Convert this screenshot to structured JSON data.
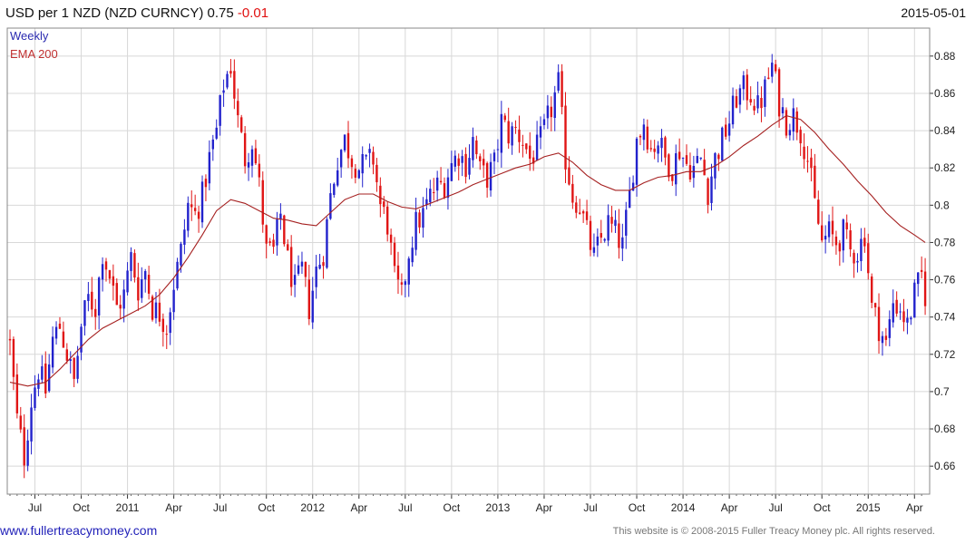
{
  "header": {
    "title": "USD per 1 NZD (NZD CURNCY) 0.75",
    "change": "-0.01",
    "date": "2015-05-01"
  },
  "legend": {
    "weekly": "Weekly",
    "ema": "EMA 200"
  },
  "footer": {
    "site": "www.fullertreacymoney.com",
    "copyright": "This website is © 2008-2015 Fuller Treacy Money plc. All rights reserved."
  },
  "colors": {
    "up": "#2222cc",
    "down": "#e01515",
    "ema": "#a52020",
    "grid": "#d8d8d8"
  },
  "chart_data": {
    "type": "candlestick",
    "title": "USD per 1 NZD (NZD CURNCY) 0.75",
    "period": "Weekly",
    "ylim": [
      0.645,
      0.895
    ],
    "y_ticks": [
      0.66,
      0.68,
      0.7,
      0.72,
      0.74,
      0.76,
      0.78,
      0.8,
      0.82,
      0.84,
      0.86,
      0.88
    ],
    "y_tick_labels": [
      "0.66",
      "0.68",
      "0.7",
      "0.72",
      "0.74",
      "0.76",
      "0.78",
      "0.8",
      "0.82",
      "0.84",
      "0.86",
      "0.88"
    ],
    "x_ticks": [
      {
        "i": 7,
        "label": "Jul"
      },
      {
        "i": 20,
        "label": "Oct"
      },
      {
        "i": 33,
        "label": "2011"
      },
      {
        "i": 46,
        "label": "Apr"
      },
      {
        "i": 59,
        "label": "Jul"
      },
      {
        "i": 72,
        "label": "Oct"
      },
      {
        "i": 85,
        "label": "2012"
      },
      {
        "i": 98,
        "label": "Apr"
      },
      {
        "i": 111,
        "label": "Jul"
      },
      {
        "i": 124,
        "label": "Oct"
      },
      {
        "i": 137,
        "label": "2013"
      },
      {
        "i": 150,
        "label": "Apr"
      },
      {
        "i": 163,
        "label": "Jul"
      },
      {
        "i": 176,
        "label": "Oct"
      },
      {
        "i": 189,
        "label": "2014"
      },
      {
        "i": 202,
        "label": "Apr"
      },
      {
        "i": 215,
        "label": "Jul"
      },
      {
        "i": 228,
        "label": "Oct"
      },
      {
        "i": 241,
        "label": "2015"
      },
      {
        "i": 254,
        "label": "Apr"
      }
    ],
    "num_weeks": 258,
    "weekly_closes": [
      [
        0,
        0.725
      ],
      [
        2,
        0.685
      ],
      [
        4,
        0.665
      ],
      [
        6,
        0.695
      ],
      [
        8,
        0.712
      ],
      [
        10,
        0.7
      ],
      [
        12,
        0.728
      ],
      [
        14,
        0.735
      ],
      [
        16,
        0.72
      ],
      [
        18,
        0.705
      ],
      [
        20,
        0.735
      ],
      [
        22,
        0.75
      ],
      [
        24,
        0.745
      ],
      [
        26,
        0.775
      ],
      [
        28,
        0.762
      ],
      [
        30,
        0.745
      ],
      [
        32,
        0.752
      ],
      [
        34,
        0.772
      ],
      [
        36,
        0.755
      ],
      [
        38,
        0.765
      ],
      [
        40,
        0.745
      ],
      [
        42,
        0.742
      ],
      [
        44,
        0.735
      ],
      [
        46,
        0.758
      ],
      [
        48,
        0.775
      ],
      [
        50,
        0.8
      ],
      [
        52,
        0.795
      ],
      [
        54,
        0.805
      ],
      [
        56,
        0.825
      ],
      [
        58,
        0.84
      ],
      [
        60,
        0.865
      ],
      [
        62,
        0.875
      ],
      [
        64,
        0.845
      ],
      [
        66,
        0.825
      ],
      [
        68,
        0.835
      ],
      [
        70,
        0.81
      ],
      [
        72,
        0.775
      ],
      [
        74,
        0.775
      ],
      [
        76,
        0.795
      ],
      [
        78,
        0.77
      ],
      [
        80,
        0.755
      ],
      [
        82,
        0.765
      ],
      [
        84,
        0.745
      ],
      [
        86,
        0.765
      ],
      [
        88,
        0.775
      ],
      [
        90,
        0.805
      ],
      [
        92,
        0.825
      ],
      [
        94,
        0.835
      ],
      [
        96,
        0.825
      ],
      [
        98,
        0.82
      ],
      [
        100,
        0.822
      ],
      [
        102,
        0.825
      ],
      [
        104,
        0.8
      ],
      [
        106,
        0.79
      ],
      [
        108,
        0.76
      ],
      [
        110,
        0.75
      ],
      [
        112,
        0.775
      ],
      [
        114,
        0.79
      ],
      [
        116,
        0.795
      ],
      [
        118,
        0.805
      ],
      [
        120,
        0.81
      ],
      [
        122,
        0.812
      ],
      [
        124,
        0.822
      ],
      [
        126,
        0.828
      ],
      [
        128,
        0.822
      ],
      [
        130,
        0.835
      ],
      [
        132,
        0.818
      ],
      [
        134,
        0.815
      ],
      [
        136,
        0.822
      ],
      [
        138,
        0.845
      ],
      [
        140,
        0.838
      ],
      [
        142,
        0.84
      ],
      [
        144,
        0.835
      ],
      [
        146,
        0.825
      ],
      [
        148,
        0.83
      ],
      [
        150,
        0.84
      ],
      [
        152,
        0.852
      ],
      [
        154,
        0.865
      ],
      [
        156,
        0.825
      ],
      [
        158,
        0.805
      ],
      [
        160,
        0.8
      ],
      [
        162,
        0.785
      ],
      [
        164,
        0.772
      ],
      [
        166,
        0.782
      ],
      [
        168,
        0.79
      ],
      [
        170,
        0.785
      ],
      [
        172,
        0.778
      ],
      [
        174,
        0.805
      ],
      [
        176,
        0.835
      ],
      [
        178,
        0.845
      ],
      [
        180,
        0.83
      ],
      [
        182,
        0.835
      ],
      [
        184,
        0.825
      ],
      [
        186,
        0.82
      ],
      [
        188,
        0.83
      ],
      [
        190,
        0.822
      ],
      [
        192,
        0.82
      ],
      [
        194,
        0.825
      ],
      [
        196,
        0.808
      ],
      [
        198,
        0.825
      ],
      [
        200,
        0.835
      ],
      [
        202,
        0.845
      ],
      [
        204,
        0.858
      ],
      [
        206,
        0.862
      ],
      [
        208,
        0.86
      ],
      [
        210,
        0.852
      ],
      [
        212,
        0.862
      ],
      [
        214,
        0.875
      ],
      [
        216,
        0.855
      ],
      [
        218,
        0.845
      ],
      [
        220,
        0.848
      ],
      [
        222,
        0.84
      ],
      [
        224,
        0.825
      ],
      [
        226,
        0.8
      ],
      [
        228,
        0.78
      ],
      [
        230,
        0.785
      ],
      [
        232,
        0.78
      ],
      [
        234,
        0.785
      ],
      [
        236,
        0.775
      ],
      [
        238,
        0.775
      ],
      [
        240,
        0.785
      ],
      [
        242,
        0.745
      ],
      [
        244,
        0.735
      ],
      [
        246,
        0.725
      ],
      [
        248,
        0.748
      ],
      [
        250,
        0.745
      ],
      [
        252,
        0.735
      ],
      [
        254,
        0.752
      ],
      [
        256,
        0.762
      ],
      [
        257,
        0.752
      ]
    ],
    "ema_200": [
      [
        0,
        0.705
      ],
      [
        5,
        0.703
      ],
      [
        10,
        0.705
      ],
      [
        14,
        0.712
      ],
      [
        18,
        0.72
      ],
      [
        22,
        0.728
      ],
      [
        26,
        0.734
      ],
      [
        30,
        0.738
      ],
      [
        34,
        0.742
      ],
      [
        38,
        0.746
      ],
      [
        42,
        0.752
      ],
      [
        46,
        0.761
      ],
      [
        50,
        0.772
      ],
      [
        54,
        0.784
      ],
      [
        58,
        0.797
      ],
      [
        62,
        0.803
      ],
      [
        66,
        0.801
      ],
      [
        70,
        0.797
      ],
      [
        74,
        0.793
      ],
      [
        78,
        0.792
      ],
      [
        82,
        0.79
      ],
      [
        86,
        0.789
      ],
      [
        90,
        0.796
      ],
      [
        94,
        0.803
      ],
      [
        98,
        0.806
      ],
      [
        102,
        0.806
      ],
      [
        106,
        0.802
      ],
      [
        110,
        0.799
      ],
      [
        114,
        0.798
      ],
      [
        118,
        0.801
      ],
      [
        122,
        0.804
      ],
      [
        126,
        0.807
      ],
      [
        130,
        0.811
      ],
      [
        134,
        0.814
      ],
      [
        138,
        0.817
      ],
      [
        142,
        0.82
      ],
      [
        146,
        0.822
      ],
      [
        150,
        0.826
      ],
      [
        154,
        0.828
      ],
      [
        158,
        0.823
      ],
      [
        162,
        0.816
      ],
      [
        166,
        0.811
      ],
      [
        170,
        0.808
      ],
      [
        174,
        0.808
      ],
      [
        178,
        0.812
      ],
      [
        182,
        0.815
      ],
      [
        186,
        0.816
      ],
      [
        190,
        0.818
      ],
      [
        194,
        0.818
      ],
      [
        198,
        0.821
      ],
      [
        202,
        0.826
      ],
      [
        206,
        0.832
      ],
      [
        210,
        0.837
      ],
      [
        214,
        0.843
      ],
      [
        218,
        0.848
      ],
      [
        222,
        0.846
      ],
      [
        226,
        0.839
      ],
      [
        230,
        0.83
      ],
      [
        234,
        0.822
      ],
      [
        238,
        0.813
      ],
      [
        242,
        0.805
      ],
      [
        246,
        0.796
      ],
      [
        250,
        0.789
      ],
      [
        254,
        0.784
      ],
      [
        257,
        0.78
      ]
    ],
    "xlabel": "",
    "ylabel": ""
  }
}
